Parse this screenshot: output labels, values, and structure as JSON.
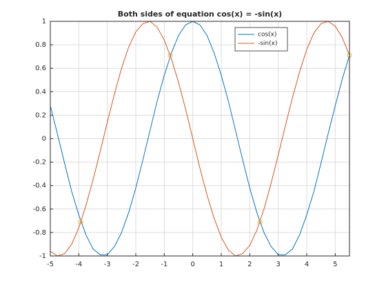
{
  "chart_data": {
    "type": "line",
    "title": "Both sides of equation cos(x) = -sin(x)",
    "x": [
      -5,
      -4.75,
      -4.5,
      -4.25,
      -4,
      -3.75,
      -3.5,
      -3.25,
      -3,
      -2.75,
      -2.5,
      -2.25,
      -2,
      -1.75,
      -1.5,
      -1.25,
      -1,
      -0.75,
      -0.5,
      -0.25,
      0,
      0.25,
      0.5,
      0.75,
      1,
      1.25,
      1.5,
      1.75,
      2,
      2.25,
      2.5,
      2.75,
      3,
      3.25,
      3.5,
      3.75,
      4,
      4.25,
      4.5,
      4.75,
      5,
      5.25,
      5.5
    ],
    "series": [
      {
        "name": "cos(x)",
        "color": "#0072bd",
        "values": [
          0.28,
          0.04,
          -0.21,
          -0.45,
          -0.65,
          -0.82,
          -0.94,
          -0.99,
          -0.99,
          -0.92,
          -0.8,
          -0.63,
          -0.42,
          -0.18,
          0.07,
          0.32,
          0.54,
          0.73,
          0.88,
          0.97,
          1,
          0.97,
          0.88,
          0.73,
          0.54,
          0.32,
          0.07,
          -0.18,
          -0.42,
          -0.63,
          -0.8,
          -0.92,
          -0.99,
          -0.99,
          -0.94,
          -0.82,
          -0.65,
          -0.45,
          -0.21,
          0.04,
          0.28,
          0.51,
          0.71
        ]
      },
      {
        "name": "-sin(x)",
        "color": "#d95319",
        "values": [
          -0.96,
          -1,
          -0.98,
          -0.9,
          -0.76,
          -0.57,
          -0.35,
          -0.11,
          0.14,
          0.38,
          0.6,
          0.78,
          0.91,
          0.98,
          1,
          0.95,
          0.84,
          0.68,
          0.48,
          0.25,
          0,
          -0.25,
          -0.48,
          -0.68,
          -0.84,
          -0.95,
          -1,
          -0.98,
          -0.91,
          -0.78,
          -0.6,
          -0.38,
          -0.14,
          0.11,
          0.35,
          0.57,
          0.76,
          0.9,
          0.98,
          1,
          0.96,
          0.86,
          0.71
        ]
      }
    ],
    "points": {
      "color": "#edb120",
      "x": [
        -3.93,
        -0.79,
        2.36,
        5.5
      ],
      "y": [
        -0.71,
        0.71,
        -0.71,
        0.71
      ]
    },
    "xlim": [
      -5,
      5.5
    ],
    "ylim": [
      -1,
      1
    ],
    "xticks": [
      -5,
      -4,
      -3,
      -2,
      -1,
      0,
      1,
      2,
      3,
      4,
      5
    ],
    "yticks": [
      -1,
      -0.8,
      -0.6,
      -0.4,
      -0.2,
      0,
      0.2,
      0.4,
      0.6,
      0.8,
      1
    ],
    "grid": true,
    "legend": "top-right"
  }
}
